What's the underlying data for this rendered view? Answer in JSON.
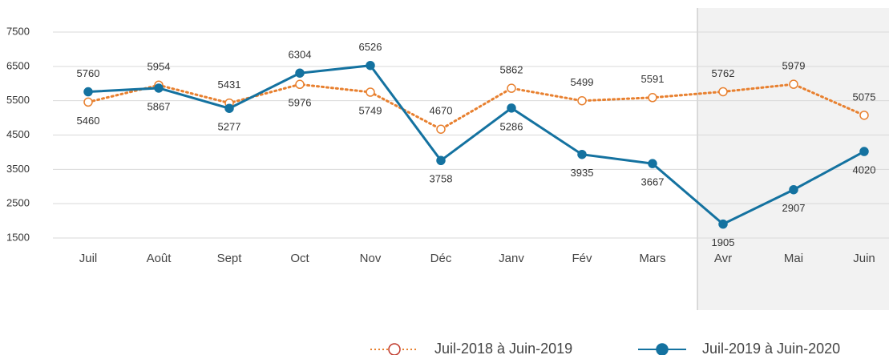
{
  "chart_data": {
    "type": "line",
    "categories": [
      "Juil",
      "Août",
      "Sept",
      "Oct",
      "Nov",
      "Déc",
      "Janv",
      "Fév",
      "Mars",
      "Avr",
      "Mai",
      "Juin"
    ],
    "series": [
      {
        "name": "Juil-2018 à Juin-2019",
        "color": "#e8802f",
        "values": [
          5460,
          5954,
          5431,
          5976,
          5749,
          4670,
          5862,
          5499,
          5591,
          5762,
          5979,
          5075
        ]
      },
      {
        "name": "Juil-2019 à Juin-2020",
        "color": "#1472a0",
        "values": [
          5760,
          5867,
          5277,
          6304,
          6526,
          3758,
          5286,
          3935,
          3667,
          1905,
          2907,
          4020
        ]
      }
    ],
    "ylim": [
      1500,
      7500
    ],
    "yticks": [
      1500,
      2500,
      3500,
      4500,
      5500,
      6500,
      7500
    ],
    "grid": true
  }
}
